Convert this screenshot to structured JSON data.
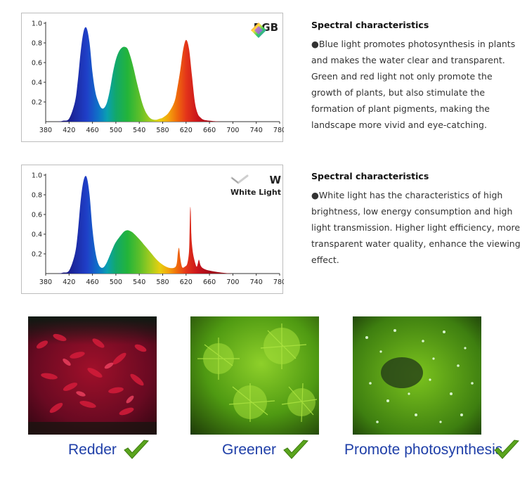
{
  "chart_data": [
    {
      "type": "area",
      "xlim": [
        380,
        780
      ],
      "ylim": [
        0,
        1.0
      ],
      "x_ticks": [
        380,
        420,
        460,
        500,
        540,
        580,
        620,
        660,
        700,
        740,
        780
      ],
      "y_ticks": [
        0.2,
        0.4,
        0.6,
        0.8,
        1.0
      ],
      "legend": "RGB",
      "legend_position": "top-right",
      "x": [
        380,
        400,
        410,
        420,
        430,
        435,
        440,
        445,
        450,
        455,
        460,
        465,
        470,
        475,
        480,
        485,
        490,
        495,
        500,
        505,
        510,
        515,
        520,
        525,
        530,
        535,
        540,
        545,
        550,
        555,
        560,
        565,
        570,
        575,
        580,
        590,
        600,
        605,
        610,
        615,
        620,
        625,
        630,
        635,
        640,
        645,
        650,
        660,
        680,
        700,
        720,
        740,
        760,
        780
      ],
      "y": [
        0.0,
        0.0,
        0.01,
        0.03,
        0.2,
        0.42,
        0.72,
        0.92,
        0.95,
        0.8,
        0.5,
        0.3,
        0.2,
        0.14,
        0.14,
        0.2,
        0.33,
        0.5,
        0.63,
        0.71,
        0.75,
        0.76,
        0.74,
        0.66,
        0.55,
        0.42,
        0.3,
        0.19,
        0.11,
        0.06,
        0.03,
        0.02,
        0.02,
        0.03,
        0.04,
        0.09,
        0.2,
        0.34,
        0.52,
        0.73,
        0.83,
        0.74,
        0.47,
        0.2,
        0.08,
        0.04,
        0.02,
        0.01,
        0.0,
        0.0,
        0.0,
        0.0,
        0.0,
        0.0
      ]
    },
    {
      "type": "area",
      "xlim": [
        380,
        780
      ],
      "ylim": [
        0,
        1.0
      ],
      "x_ticks": [
        380,
        420,
        460,
        500,
        540,
        580,
        620,
        660,
        700,
        740,
        780
      ],
      "y_ticks": [
        0.2,
        0.4,
        0.6,
        0.8,
        1.0
      ],
      "legend": "W",
      "legend_sub": "White Light",
      "legend_position": "top-right",
      "x": [
        380,
        400,
        410,
        420,
        430,
        435,
        440,
        445,
        450,
        455,
        460,
        465,
        470,
        475,
        480,
        485,
        490,
        495,
        500,
        510,
        515,
        520,
        525,
        530,
        540,
        550,
        560,
        570,
        580,
        590,
        600,
        604,
        606,
        608,
        610,
        612,
        614,
        618,
        622,
        625,
        626,
        627,
        628,
        629,
        630,
        632,
        635,
        638,
        640,
        642,
        645,
        650,
        660,
        680,
        700,
        720,
        740,
        760,
        780
      ],
      "y": [
        0.0,
        0.0,
        0.01,
        0.03,
        0.2,
        0.42,
        0.75,
        0.95,
        0.98,
        0.8,
        0.45,
        0.22,
        0.1,
        0.06,
        0.07,
        0.12,
        0.19,
        0.26,
        0.32,
        0.4,
        0.43,
        0.44,
        0.43,
        0.41,
        0.35,
        0.28,
        0.21,
        0.14,
        0.09,
        0.06,
        0.06,
        0.1,
        0.21,
        0.26,
        0.16,
        0.09,
        0.06,
        0.07,
        0.1,
        0.22,
        0.42,
        0.66,
        0.63,
        0.4,
        0.3,
        0.2,
        0.12,
        0.07,
        0.1,
        0.14,
        0.08,
        0.05,
        0.03,
        0.01,
        0.0,
        0.0,
        0.0,
        0.0,
        0.0
      ]
    }
  ],
  "sections": [
    {
      "heading": "Spectral characteristics",
      "text": "●Blue light promotes photosynthesis in plants and makes the water clear and transparent. Green and red light not only promote the growth of plants, but also stimulate the formation of plant pigments, making the landscape more vivid and eye-catching."
    },
    {
      "heading": "Spectral characteristics",
      "text": "●White light has the characteristics of high brightness, low energy consumption and high light transmission. Higher light efficiency, more transparent water quality, enhance the viewing effect."
    }
  ],
  "captions": [
    "Redder",
    "Greener",
    "Promote photosynthesis"
  ],
  "colors": {
    "caption": "#1f3fa8",
    "check": "#5aa51d",
    "axis": "#333333"
  }
}
